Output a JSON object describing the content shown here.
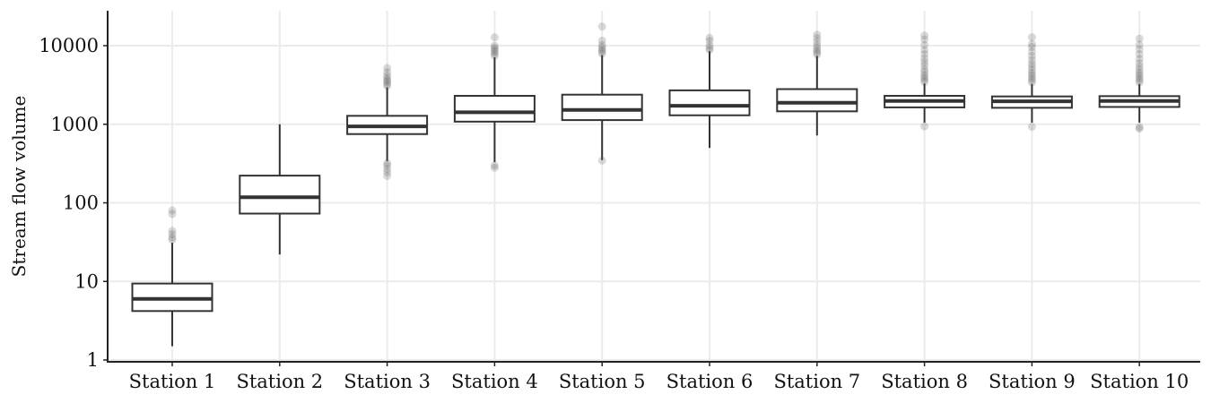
{
  "chart_data": {
    "type": "boxplot",
    "title": "",
    "xlabel": "",
    "ylabel": "Stream flow volume",
    "y_scale": "log10",
    "ylim": [
      1,
      28000
    ],
    "y_ticks": [
      1,
      10,
      100,
      1000,
      10000
    ],
    "y_tick_labels": [
      "1",
      "10",
      "100",
      "1000",
      "10000"
    ],
    "grid": true,
    "legend": "none",
    "colors": {
      "box_fill": "#ffffff",
      "box_stroke": "#333333",
      "outlier": "#555555",
      "grid": "#ebebeb",
      "axis": "#222222"
    },
    "categories": [
      "Station 1",
      "Station 2",
      "Station 3",
      "Station 4",
      "Station 5",
      "Station 6",
      "Station 7",
      "Station 8",
      "Station 9",
      "Station 10"
    ],
    "boxes": [
      {
        "min": 1.5,
        "q1": 4.2,
        "median": 6,
        "q3": 9.4,
        "max": 31,
        "outliers": [
          34,
          36,
          40,
          44,
          72,
          80
        ]
      },
      {
        "min": 22,
        "q1": 73,
        "median": 118,
        "q3": 222,
        "max": 1000,
        "outliers": []
      },
      {
        "min": 340,
        "q1": 750,
        "median": 940,
        "q3": 1280,
        "max": 2950,
        "outliers": [
          220,
          245,
          270,
          300,
          320,
          3050,
          3250,
          3450,
          3650,
          3850,
          4150,
          4600,
          5200
        ]
      },
      {
        "min": 330,
        "q1": 1080,
        "median": 1420,
        "q3": 2300,
        "max": 7100,
        "outliers": [
          280,
          300,
          7400,
          7900,
          8400,
          8900,
          9400,
          10000,
          12800
        ]
      },
      {
        "min": 350,
        "q1": 1130,
        "median": 1520,
        "q3": 2380,
        "max": 7600,
        "outliers": [
          345,
          7900,
          8400,
          8900,
          9500,
          10200,
          11600,
          17500
        ]
      },
      {
        "min": 500,
        "q1": 1300,
        "median": 1720,
        "q3": 2700,
        "max": 8500,
        "outliers": [
          8800,
          9300,
          10100,
          11500,
          12600
        ]
      },
      {
        "min": 720,
        "q1": 1460,
        "median": 1880,
        "q3": 2800,
        "max": 7400,
        "outliers": [
          7700,
          8200,
          8700,
          9300,
          10100,
          11200,
          12500,
          13800
        ]
      },
      {
        "min": 1050,
        "q1": 1640,
        "median": 1980,
        "q3": 2300,
        "max": 3300,
        "outliers": [
          940,
          3450,
          3700,
          3950,
          4200,
          4600,
          5000,
          5600,
          6200,
          6900,
          7800,
          8800,
          10200,
          12000,
          13500
        ]
      },
      {
        "min": 1050,
        "q1": 1620,
        "median": 1960,
        "q3": 2260,
        "max": 3250,
        "outliers": [
          930,
          3400,
          3650,
          3900,
          4200,
          4500,
          4900,
          5400,
          5900,
          6600,
          7400,
          8400,
          9600,
          10500,
          12800
        ]
      },
      {
        "min": 1050,
        "q1": 1660,
        "median": 1980,
        "q3": 2280,
        "max": 3250,
        "outliers": [
          880,
          920,
          3400,
          3650,
          3900,
          4200,
          4500,
          4900,
          5400,
          6000,
          6800,
          7800,
          9000,
          10300,
          12300
        ]
      }
    ]
  }
}
